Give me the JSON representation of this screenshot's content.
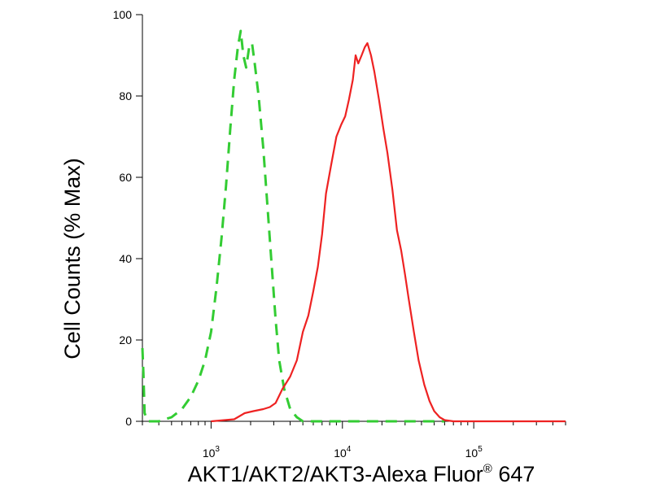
{
  "chart_data": {
    "type": "line",
    "title": "",
    "xlabel": "AKT1/AKT2/AKT3-Alexa Fluor",
    "xlabel_superscript": "®",
    "xlabel_suffix": " 647",
    "ylabel": "Cell Counts (% Max)",
    "x_scale": "log",
    "xlim": [
      300,
      500000
    ],
    "ylim": [
      0,
      100
    ],
    "yticks": [
      0,
      20,
      40,
      60,
      80,
      100
    ],
    "xticks": [
      {
        "value": 1000,
        "base": "10",
        "exp": "3"
      },
      {
        "value": 10000,
        "base": "10",
        "exp": "4"
      },
      {
        "value": 100000,
        "base": "10",
        "exp": "5"
      }
    ],
    "grid": false,
    "legend": "none",
    "series": [
      {
        "style": "dashed",
        "color": "#33cc33",
        "points": [
          [
            300,
            18
          ],
          [
            305,
            12
          ],
          [
            312,
            2
          ],
          [
            330,
            0
          ],
          [
            400,
            0
          ],
          [
            500,
            1
          ],
          [
            600,
            3
          ],
          [
            700,
            6
          ],
          [
            800,
            10
          ],
          [
            900,
            15
          ],
          [
            1000,
            22
          ],
          [
            1100,
            33
          ],
          [
            1200,
            45
          ],
          [
            1300,
            58
          ],
          [
            1400,
            72
          ],
          [
            1500,
            84
          ],
          [
            1600,
            92
          ],
          [
            1680,
            96
          ],
          [
            1760,
            90
          ],
          [
            1850,
            87
          ],
          [
            1950,
            92
          ],
          [
            2050,
            93
          ],
          [
            2150,
            88
          ],
          [
            2300,
            80
          ],
          [
            2500,
            67
          ],
          [
            2700,
            52
          ],
          [
            2900,
            38
          ],
          [
            3100,
            25
          ],
          [
            3300,
            15
          ],
          [
            3600,
            8
          ],
          [
            4000,
            3
          ],
          [
            4500,
            1
          ],
          [
            5000,
            0
          ],
          [
            6000,
            0
          ],
          [
            10000,
            0
          ],
          [
            30000,
            0
          ],
          [
            60000,
            0
          ]
        ]
      },
      {
        "style": "solid",
        "color": "#ee2222",
        "points": [
          [
            1000,
            0
          ],
          [
            1500,
            0.5
          ],
          [
            1800,
            2
          ],
          [
            2100,
            2.5
          ],
          [
            2500,
            3
          ],
          [
            2800,
            3.5
          ],
          [
            3100,
            4.5
          ],
          [
            3500,
            8
          ],
          [
            4000,
            11
          ],
          [
            4500,
            15
          ],
          [
            5000,
            22
          ],
          [
            5500,
            26
          ],
          [
            6000,
            32
          ],
          [
            6500,
            38
          ],
          [
            7000,
            46
          ],
          [
            7500,
            56
          ],
          [
            8200,
            63
          ],
          [
            9000,
            70
          ],
          [
            9800,
            73
          ],
          [
            10500,
            75
          ],
          [
            11200,
            79
          ],
          [
            12000,
            84
          ],
          [
            12600,
            90
          ],
          [
            13200,
            88
          ],
          [
            14000,
            90
          ],
          [
            14800,
            92
          ],
          [
            15500,
            93
          ],
          [
            16500,
            90
          ],
          [
            17500,
            86
          ],
          [
            19000,
            79
          ],
          [
            20500,
            72
          ],
          [
            22000,
            66
          ],
          [
            24000,
            57
          ],
          [
            26000,
            47
          ],
          [
            28000,
            42
          ],
          [
            30000,
            36
          ],
          [
            32000,
            30
          ],
          [
            35000,
            22
          ],
          [
            38000,
            15
          ],
          [
            42000,
            9
          ],
          [
            46000,
            5
          ],
          [
            50000,
            2.5
          ],
          [
            55000,
            1
          ],
          [
            60000,
            0.3
          ],
          [
            70000,
            0
          ],
          [
            100000,
            0
          ],
          [
            200000,
            0
          ],
          [
            500000,
            0
          ]
        ]
      }
    ]
  }
}
